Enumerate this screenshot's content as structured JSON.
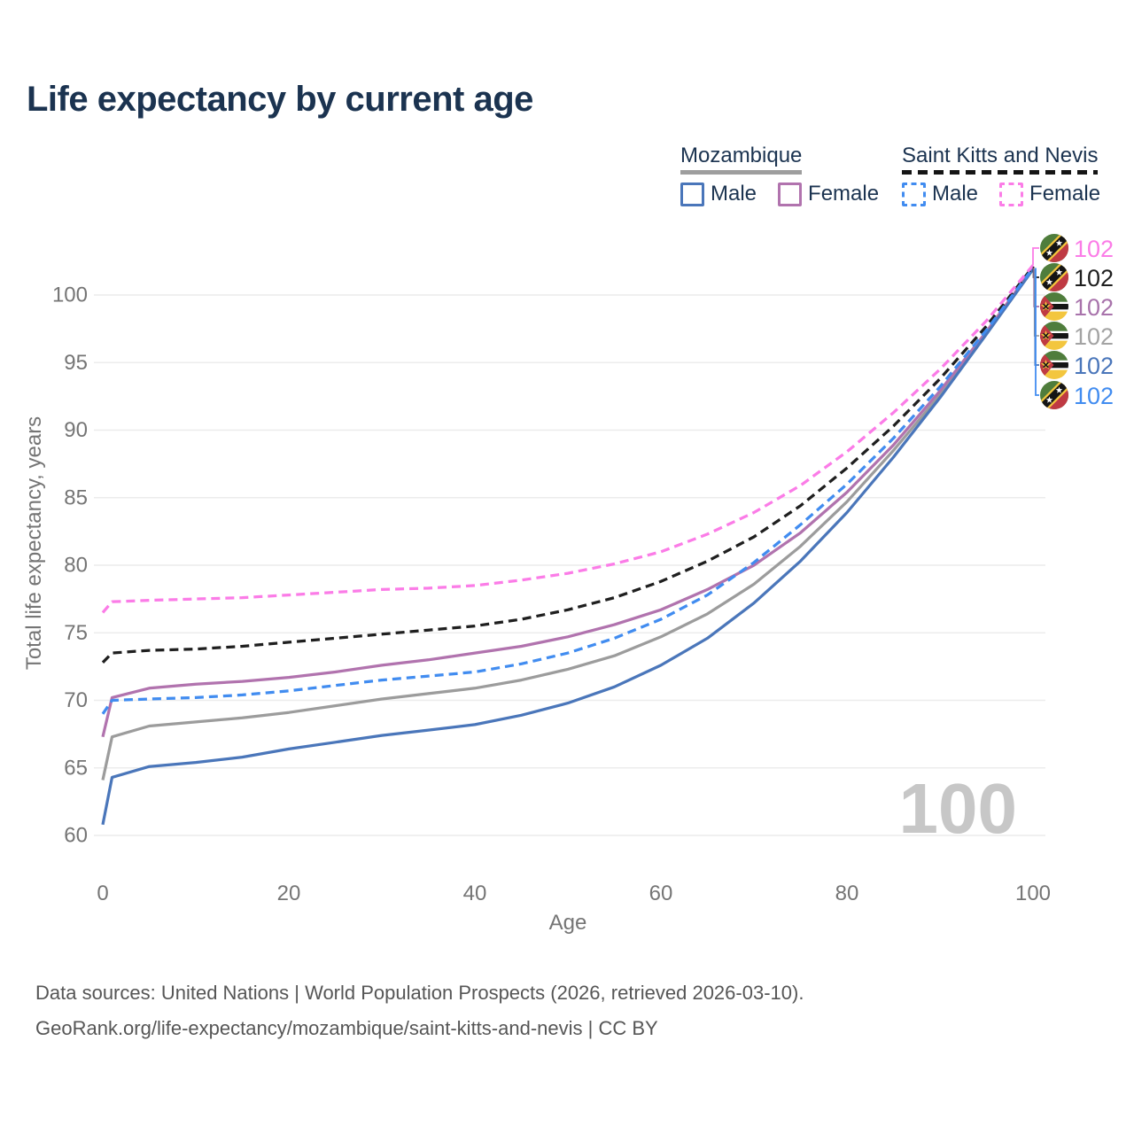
{
  "title": "Life expectancy by current age",
  "legend": {
    "groups": [
      {
        "id": "mozambique",
        "label": "Mozambique",
        "underline_style": "solid",
        "underline_color": "#9e9e9e",
        "items": [
          {
            "label": "Male",
            "swatch_color": "#4a76ba",
            "swatch_style": "solid"
          },
          {
            "label": "Female",
            "swatch_color": "#b173ae",
            "swatch_style": "solid"
          }
        ]
      },
      {
        "id": "saint-kitts-and-nevis",
        "label": "Saint Kitts and Nevis",
        "underline_style": "dashed",
        "underline_color": "#151515",
        "items": [
          {
            "label": "Male",
            "swatch_color": "#418cf0",
            "swatch_style": "dashed"
          },
          {
            "label": "Female",
            "swatch_color": "#fb7ce7",
            "swatch_style": "dashed"
          }
        ]
      }
    ]
  },
  "chart_data": {
    "type": "line",
    "title": "Life expectancy by current age",
    "xlabel": "Age",
    "ylabel": "Total life expectancy, years",
    "xlim": [
      0,
      100
    ],
    "ylim": [
      60,
      103
    ],
    "xticks": [
      0,
      20,
      40,
      60,
      80,
      100
    ],
    "yticks": [
      60,
      65,
      70,
      75,
      80,
      85,
      90,
      95,
      100
    ],
    "grid": "horizontal",
    "gridline_color": "#ececec",
    "tick_label_color": "#757575",
    "watermark": "100",
    "watermark_color": "#c7c7c7",
    "x": [
      0,
      1,
      5,
      10,
      15,
      20,
      25,
      30,
      35,
      40,
      45,
      50,
      55,
      60,
      65,
      70,
      75,
      80,
      85,
      90,
      95,
      100
    ],
    "series": [
      {
        "name": "Mozambique Both sexes",
        "slug": "mozambique-both",
        "color": "#9c9c9c",
        "dash": "solid",
        "values": [
          64.1,
          67.3,
          68.1,
          68.4,
          68.7,
          69.1,
          69.6,
          70.1,
          70.5,
          70.9,
          71.5,
          72.3,
          73.3,
          74.7,
          76.4,
          78.6,
          81.4,
          84.7,
          88.5,
          92.6,
          97.2,
          102.0
        ]
      },
      {
        "name": "Mozambique Female",
        "slug": "mozambique-female",
        "color": "#b173ae",
        "dash": "solid",
        "values": [
          67.3,
          70.2,
          70.9,
          71.2,
          71.4,
          71.7,
          72.1,
          72.6,
          73.0,
          73.5,
          74.0,
          74.7,
          75.6,
          76.7,
          78.2,
          80.0,
          82.4,
          85.4,
          88.9,
          92.9,
          97.3,
          102.0
        ]
      },
      {
        "name": "Mozambique Male",
        "slug": "mozambique-male",
        "color": "#4a76ba",
        "dash": "solid",
        "values": [
          60.8,
          64.3,
          65.1,
          65.4,
          65.8,
          66.4,
          66.9,
          67.4,
          67.8,
          68.2,
          68.9,
          69.8,
          71.0,
          72.6,
          74.6,
          77.2,
          80.3,
          83.9,
          88.0,
          92.4,
          97.1,
          101.9
        ]
      },
      {
        "name": "Saint Kitts and Nevis Both sexes",
        "slug": "saint-kitts-and-nevis-both",
        "color": "#1f1f1f",
        "dash": "dashed",
        "values": [
          72.8,
          73.5,
          73.7,
          73.8,
          74.0,
          74.3,
          74.6,
          74.9,
          75.2,
          75.5,
          76.0,
          76.7,
          77.6,
          78.8,
          80.3,
          82.1,
          84.4,
          87.2,
          90.3,
          93.8,
          97.7,
          102.1
        ]
      },
      {
        "name": "Saint Kitts and Nevis Male",
        "slug": "saint-kitts-and-nevis-male",
        "color": "#418cf0",
        "dash": "dashed",
        "values": [
          69.0,
          70.0,
          70.1,
          70.2,
          70.4,
          70.7,
          71.1,
          71.5,
          71.8,
          72.1,
          72.7,
          73.5,
          74.6,
          76.0,
          77.8,
          80.2,
          83.0,
          86.0,
          89.4,
          93.2,
          97.4,
          102.0
        ]
      },
      {
        "name": "Saint Kitts and Nevis Female",
        "slug": "saint-kitts-and-nevis-female",
        "color": "#fb7ce7",
        "dash": "dashed",
        "values": [
          76.5,
          77.3,
          77.4,
          77.5,
          77.6,
          77.8,
          78.0,
          78.2,
          78.3,
          78.5,
          78.9,
          79.4,
          80.1,
          81.0,
          82.3,
          83.9,
          85.9,
          88.4,
          91.3,
          94.5,
          98.1,
          102.2
        ]
      }
    ],
    "end_labels": [
      {
        "flag": "kn",
        "value": "102",
        "color": "#fb7ce7",
        "series": "Saint Kitts and Nevis Female"
      },
      {
        "flag": "kn",
        "value": "102",
        "color": "#1f1f1f",
        "series": "Saint Kitts and Nevis Both sexes"
      },
      {
        "flag": "mz",
        "value": "102",
        "color": "#a873ab",
        "series": "Mozambique Female"
      },
      {
        "flag": "mz",
        "value": "102",
        "color": "#a3a3a3",
        "series": "Mozambique Both sexes"
      },
      {
        "flag": "mz",
        "value": "102",
        "color": "#4a76ba",
        "series": "Mozambique Male"
      },
      {
        "flag": "kn",
        "value": "102",
        "color": "#418cf0",
        "series": "Saint Kitts and Nevis Male"
      }
    ],
    "flag_colors": {
      "green": "#4f7d3c",
      "red": "#bf3a43",
      "yellow": "#f3c63e",
      "black": "#151515",
      "white": "#ffffff"
    }
  },
  "footer": {
    "line1": "Data sources: United Nations | World Population Prospects (2026, retrieved 2026-03-10).",
    "line2": "GeoRank.org/life-expectancy/mozambique/saint-kitts-and-nevis | CC BY"
  }
}
